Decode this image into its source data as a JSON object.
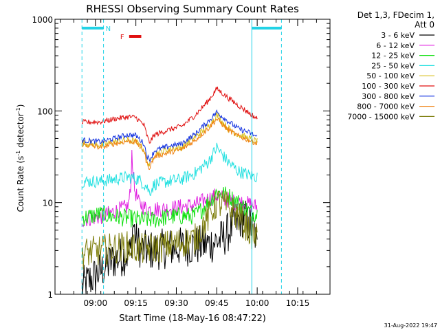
{
  "chart_data": {
    "type": "line",
    "title": "RHESSI Observing Summary Count Rates",
    "xlabel": "Start Time (18-May-16 08:47:22)",
    "ylabel_main": "Count Rate (s",
    "ylabel_sup1": "-1",
    "ylabel_mid": " detector",
    "ylabel_sup2": "-1",
    "ylabel_end": ")",
    "x_range_min": [
      -2,
      63
    ],
    "y_scale": "log",
    "ylim": [
      1,
      1000
    ],
    "x_ticks": [
      {
        "min": 3,
        "label": "09:00"
      },
      {
        "min": 18,
        "label": "09:15"
      },
      {
        "min": 33,
        "label": "09:30"
      },
      {
        "min": 48,
        "label": "09:45"
      },
      {
        "min": 63,
        "label": "10:00"
      },
      {
        "min": 78,
        "label": "10:15"
      }
    ],
    "y_ticks": [
      {
        "value": 1,
        "label": "1"
      },
      {
        "value": 10,
        "label": "10"
      },
      {
        "value": 100,
        "label": "100"
      },
      {
        "value": 1000,
        "label": "1000"
      }
    ],
    "legend_header": [
      "Det 1,3, FDecim 1,",
      "Att 0"
    ],
    "legend_position": "right",
    "footer_date": "31-Aug-2022 19:47",
    "flags": {
      "night": {
        "label": "N",
        "color": "#22d3e6",
        "intervals": [
          [
            -2,
            6
          ],
          [
            61,
            72
          ]
        ],
        "value": 800
      },
      "flare": {
        "label": "F",
        "color": "#e01010",
        "intervals": [
          [
            15.5,
            20
          ]
        ],
        "value": 650
      }
    },
    "series": [
      {
        "name": "3 - 6 keV",
        "color": "#000000",
        "noise": 0.45,
        "points": [
          [
            -2,
            1.2
          ],
          [
            5,
            1.8
          ],
          [
            10,
            2.4
          ],
          [
            16,
            2.8
          ],
          [
            17,
            6
          ],
          [
            18,
            4
          ],
          [
            20,
            3
          ],
          [
            25,
            3
          ],
          [
            30,
            3.2
          ],
          [
            40,
            3.4
          ],
          [
            45,
            3.5
          ],
          [
            50,
            4
          ],
          [
            55,
            6
          ],
          [
            58,
            7
          ],
          [
            62,
            5
          ],
          [
            63,
            3
          ]
        ]
      },
      {
        "name": "6 - 12 keV",
        "color": "#e020e0",
        "noise": 0.18,
        "points": [
          [
            -2,
            6.5
          ],
          [
            5,
            7
          ],
          [
            10,
            8
          ],
          [
            15,
            9
          ],
          [
            16,
            13
          ],
          [
            16.5,
            35
          ],
          [
            17.5,
            14
          ],
          [
            19,
            10
          ],
          [
            22,
            8.5
          ],
          [
            28,
            8.5
          ],
          [
            35,
            9
          ],
          [
            40,
            9.5
          ],
          [
            45,
            11
          ],
          [
            48,
            12
          ],
          [
            51,
            11
          ],
          [
            55,
            10
          ],
          [
            58,
            10
          ],
          [
            63,
            9
          ]
        ]
      },
      {
        "name": "12 - 25 keV",
        "color": "#10e010",
        "noise": 0.2,
        "points": [
          [
            -2,
            6.8
          ],
          [
            5,
            7.5
          ],
          [
            10,
            7
          ],
          [
            15,
            6.8
          ],
          [
            20,
            6.5
          ],
          [
            25,
            6.5
          ],
          [
            30,
            7
          ],
          [
            40,
            7.2
          ],
          [
            45,
            10
          ],
          [
            48,
            13
          ],
          [
            52,
            12
          ],
          [
            56,
            10
          ],
          [
            60,
            8
          ],
          [
            63,
            7.5
          ]
        ]
      },
      {
        "name": "25 - 50 keV",
        "color": "#22e0e0",
        "noise": 0.14,
        "points": [
          [
            -2,
            17
          ],
          [
            5,
            17
          ],
          [
            10,
            18
          ],
          [
            15,
            19
          ],
          [
            19,
            18
          ],
          [
            22,
            15
          ],
          [
            23,
            13
          ],
          [
            25,
            16
          ],
          [
            30,
            17
          ],
          [
            35,
            18
          ],
          [
            40,
            21
          ],
          [
            45,
            28
          ],
          [
            48,
            40
          ],
          [
            52,
            28
          ],
          [
            56,
            22
          ],
          [
            60,
            20
          ],
          [
            63,
            19
          ]
        ]
      },
      {
        "name": "50 - 100 keV",
        "color": "#d8c020",
        "noise": 0.08,
        "points": [
          [
            -2,
            45
          ],
          [
            5,
            42
          ],
          [
            10,
            46
          ],
          [
            15,
            48
          ],
          [
            18,
            46
          ],
          [
            21,
            38
          ],
          [
            22,
            28
          ],
          [
            23,
            26
          ],
          [
            25,
            34
          ],
          [
            30,
            38
          ],
          [
            35,
            40
          ],
          [
            40,
            52
          ],
          [
            45,
            68
          ],
          [
            48,
            90
          ],
          [
            52,
            65
          ],
          [
            56,
            55
          ],
          [
            60,
            50
          ],
          [
            63,
            46
          ]
        ]
      },
      {
        "name": "100 - 300 keV",
        "color": "#e01010",
        "noise": 0.06,
        "points": [
          [
            -2,
            75
          ],
          [
            5,
            76
          ],
          [
            10,
            82
          ],
          [
            15,
            86
          ],
          [
            18,
            85
          ],
          [
            21,
            70
          ],
          [
            22,
            55
          ],
          [
            23,
            45
          ],
          [
            25,
            55
          ],
          [
            30,
            62
          ],
          [
            35,
            68
          ],
          [
            40,
            90
          ],
          [
            45,
            130
          ],
          [
            48,
            175
          ],
          [
            52,
            140
          ],
          [
            56,
            115
          ],
          [
            60,
            95
          ],
          [
            63,
            82
          ]
        ]
      },
      {
        "name": "300 - 800 keV",
        "color": "#1030e0",
        "noise": 0.06,
        "points": [
          [
            -2,
            48
          ],
          [
            5,
            46
          ],
          [
            10,
            50
          ],
          [
            15,
            55
          ],
          [
            18,
            54
          ],
          [
            21,
            44
          ],
          [
            22,
            33
          ],
          [
            23,
            29
          ],
          [
            25,
            37
          ],
          [
            30,
            41
          ],
          [
            35,
            44
          ],
          [
            40,
            56
          ],
          [
            45,
            78
          ],
          [
            48,
            97
          ],
          [
            52,
            78
          ],
          [
            56,
            64
          ],
          [
            60,
            58
          ],
          [
            63,
            52
          ]
        ]
      },
      {
        "name": "800 - 7000 keV",
        "color": "#f08010",
        "noise": 0.06,
        "points": [
          [
            -2,
            43
          ],
          [
            5,
            40
          ],
          [
            10,
            44
          ],
          [
            15,
            47
          ],
          [
            18,
            46
          ],
          [
            21,
            37
          ],
          [
            22,
            27
          ],
          [
            23,
            24
          ],
          [
            25,
            32
          ],
          [
            30,
            35
          ],
          [
            35,
            38
          ],
          [
            40,
            48
          ],
          [
            45,
            65
          ],
          [
            48,
            82
          ],
          [
            52,
            63
          ],
          [
            56,
            53
          ],
          [
            60,
            48
          ],
          [
            63,
            44
          ]
        ]
      },
      {
        "name": "7000 - 15000 keV",
        "color": "#808010",
        "noise": 0.35,
        "points": [
          [
            -2,
            2.8
          ],
          [
            5,
            3
          ],
          [
            10,
            3.2
          ],
          [
            15,
            3.3
          ],
          [
            20,
            3.1
          ],
          [
            25,
            3.2
          ],
          [
            30,
            3.4
          ],
          [
            40,
            4
          ],
          [
            45,
            7
          ],
          [
            48,
            10
          ],
          [
            52,
            9
          ],
          [
            56,
            7
          ],
          [
            60,
            5
          ],
          [
            63,
            4
          ]
        ]
      }
    ]
  }
}
